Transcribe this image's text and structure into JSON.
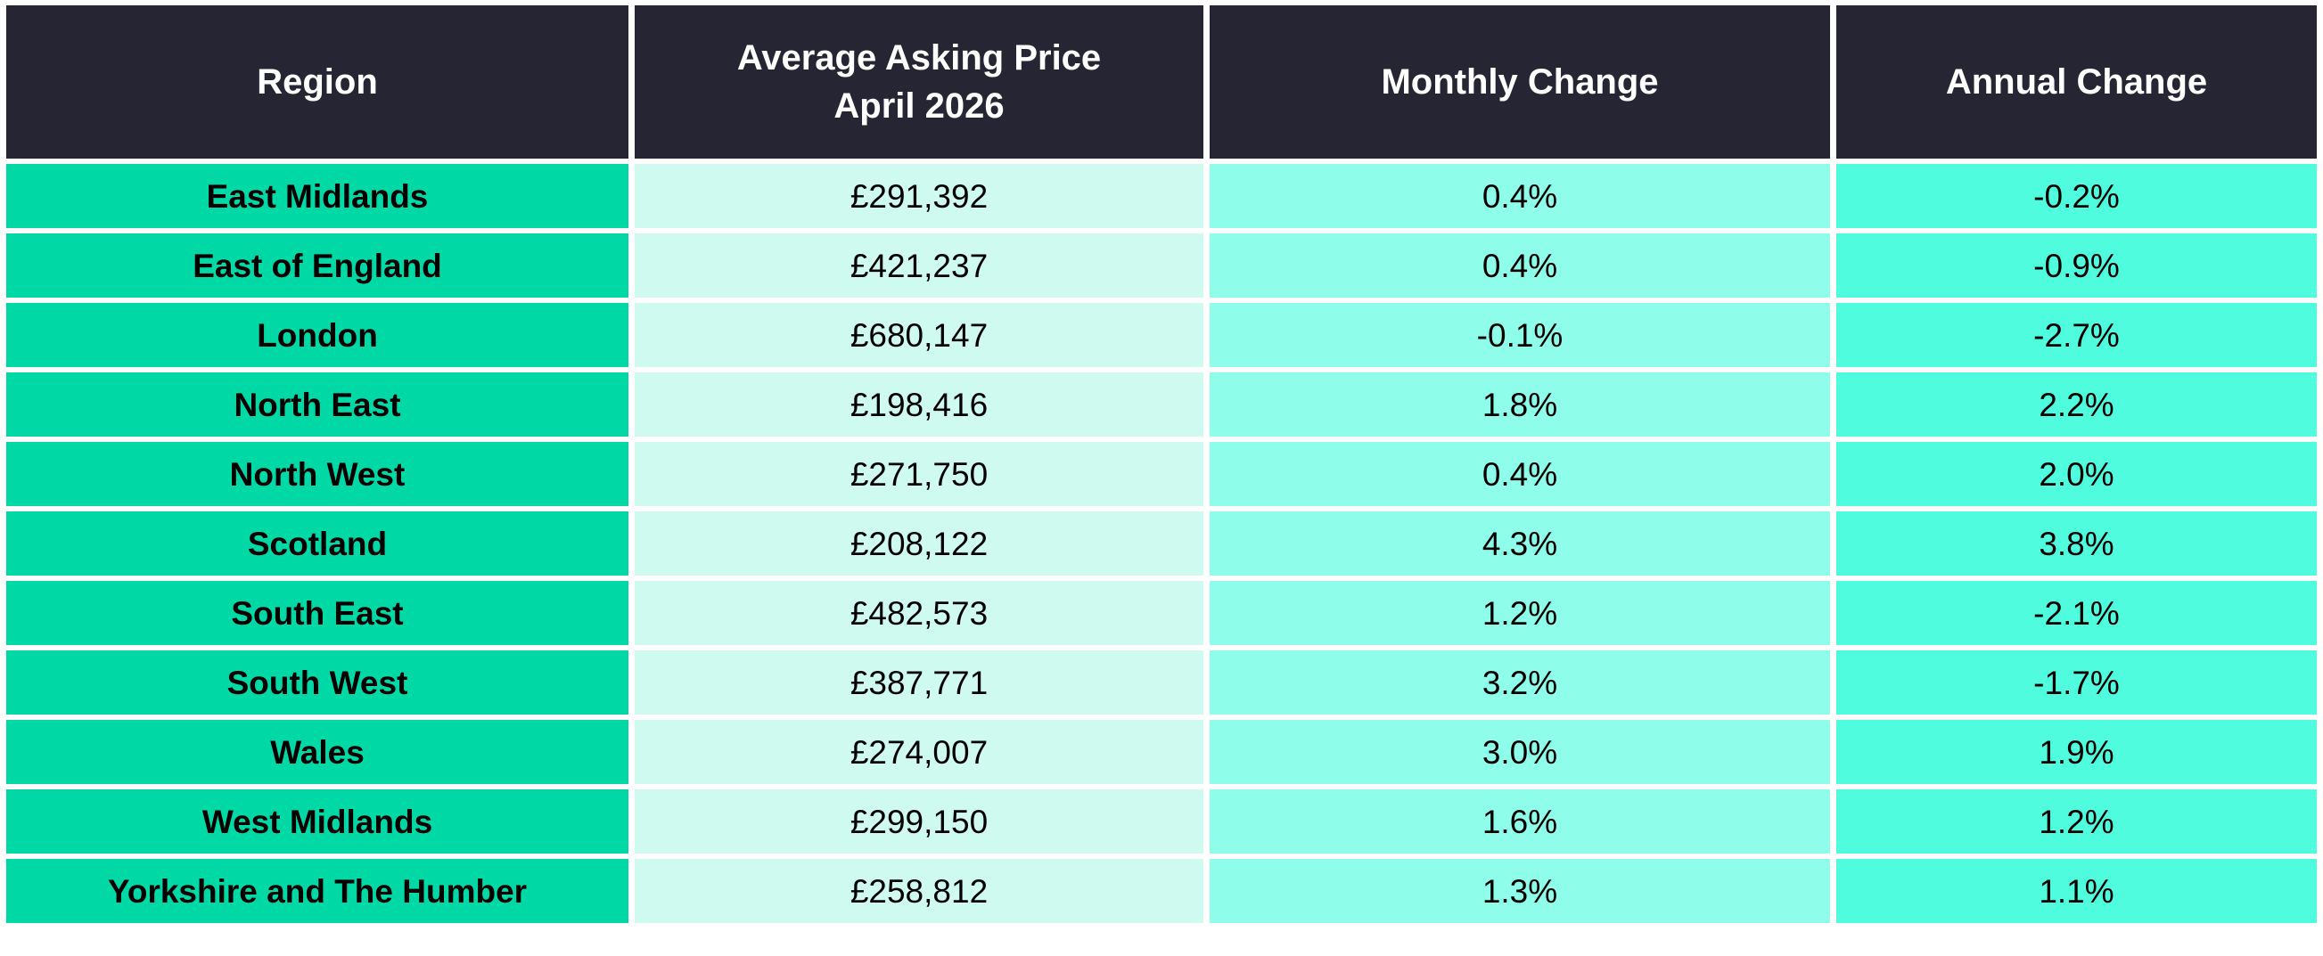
{
  "colors": {
    "page_bg": "#ffffff",
    "header_bg": "#262534",
    "header_text": "#ffffff",
    "region_bg": "#00d8a6",
    "price_bg": "#cffaf0",
    "monthly_bg": "#8efde9",
    "annual_bg": "#4ffcdd",
    "body_text": "#000000"
  },
  "chart_data": {
    "type": "table",
    "columns": [
      "Region",
      "Average Asking Price\nApril 2026",
      "Monthly Change",
      "Annual Change"
    ],
    "rows": [
      [
        "East Midlands",
        "£291,392",
        "0.4%",
        "-0.2%"
      ],
      [
        "East of England",
        "£421,237",
        "0.4%",
        "-0.9%"
      ],
      [
        "London",
        "£680,147",
        "-0.1%",
        "-2.7%"
      ],
      [
        "North East",
        "£198,416",
        "1.8%",
        "2.2%"
      ],
      [
        "North West",
        "£271,750",
        "0.4%",
        "2.0%"
      ],
      [
        "Scotland",
        "£208,122",
        "4.3%",
        "3.8%"
      ],
      [
        "South East",
        "£482,573",
        "1.2%",
        "-2.1%"
      ],
      [
        "South West",
        "£387,771",
        "3.2%",
        "-1.7%"
      ],
      [
        "Wales",
        "£274,007",
        "3.0%",
        "1.9%"
      ],
      [
        "West Midlands",
        "£299,150",
        "1.6%",
        "1.2%"
      ],
      [
        "Yorkshire and The Humber",
        "£258,812",
        "1.3%",
        "1.1%"
      ]
    ]
  }
}
